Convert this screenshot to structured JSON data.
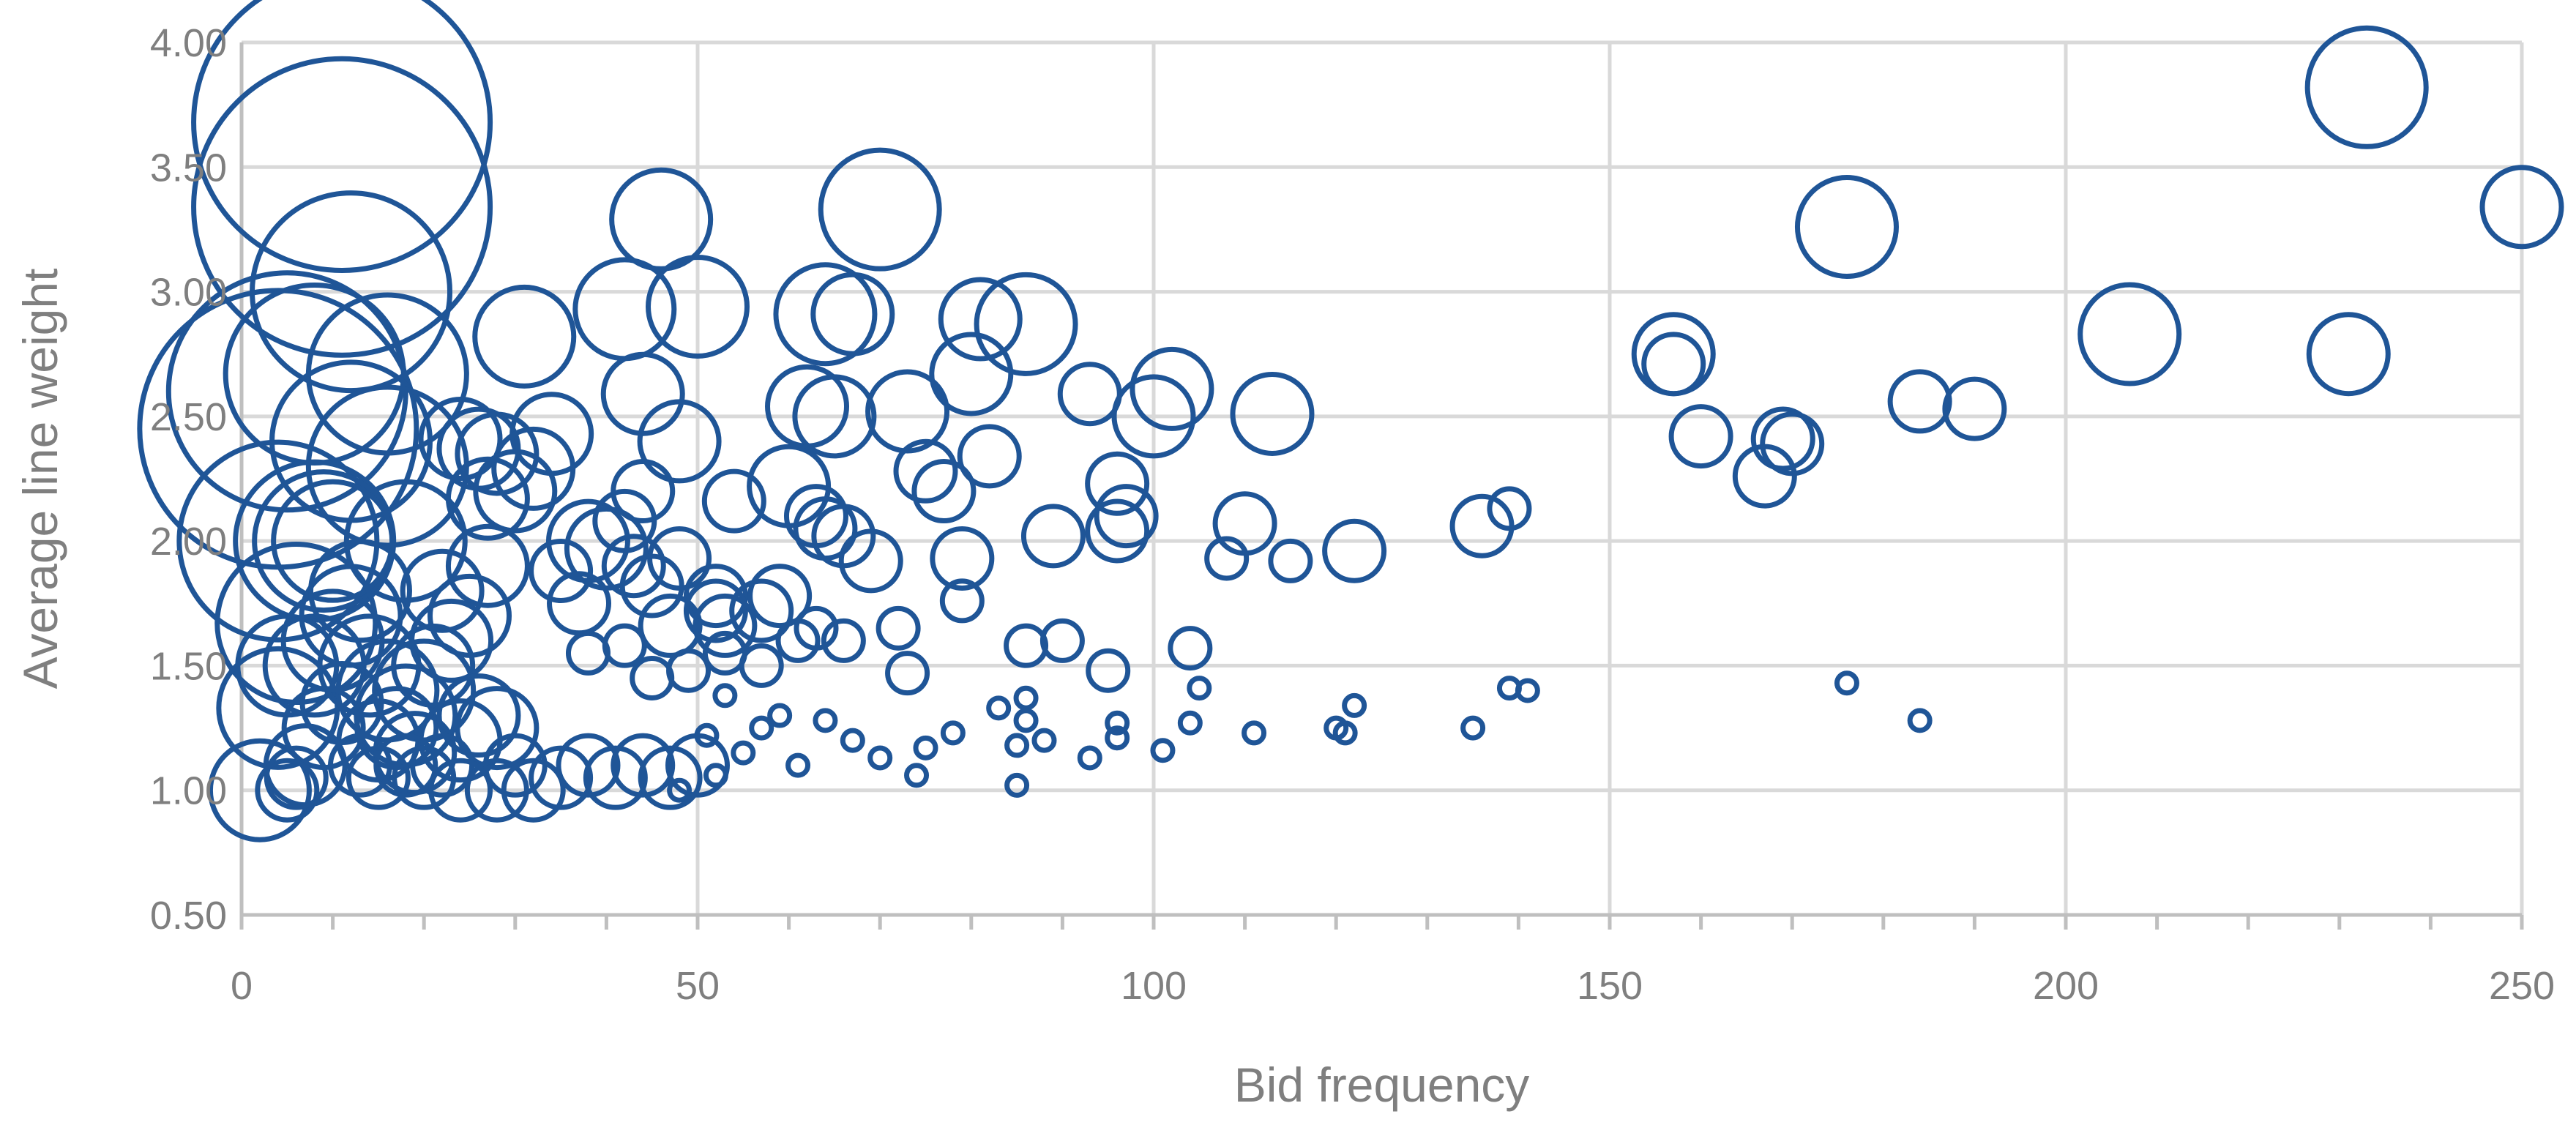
{
  "chart_data": {
    "type": "scatter",
    "xlabel": "Bid frequency",
    "ylabel": "Average line weight",
    "xlim": [
      0,
      250
    ],
    "ylim": [
      0.5,
      4.0
    ],
    "x_ticks": [
      0,
      50,
      100,
      150,
      200,
      250
    ],
    "x_tick_labels": [
      "0",
      "50",
      "100",
      "150",
      "200",
      "250"
    ],
    "x_minor_step": 10,
    "y_ticks": [
      0.5,
      1.0,
      1.5,
      2.0,
      2.5,
      3.0,
      3.5,
      4.0
    ],
    "y_tick_labels": [
      "0.50",
      "1.00",
      "1.50",
      "2.00",
      "2.50",
      "3.00",
      "3.50",
      "4.00"
    ],
    "grid": true,
    "legend": "none",
    "marker": "bubble",
    "colors": {
      "bubble": "#1f5597",
      "grid": "#d9d9d9",
      "axis": "#bfbfbf",
      "text": "#7f7f7f"
    },
    "series": [
      {
        "points": [
          [
            11,
            3.68,
            15
          ],
          [
            11,
            3.34,
            15
          ],
          [
            12,
            3.0,
            10
          ],
          [
            16,
            2.67,
            8
          ],
          [
            8,
            2.67,
            9
          ],
          [
            5,
            2.6,
            12
          ],
          [
            4,
            2.45,
            14
          ],
          [
            12,
            2.4,
            8
          ],
          [
            16,
            2.3,
            8
          ],
          [
            18,
            2.0,
            6
          ],
          [
            4,
            2.0,
            10
          ],
          [
            8,
            2.0,
            8
          ],
          [
            9,
            2.0,
            7
          ],
          [
            10,
            2.0,
            6
          ],
          [
            6,
            1.67,
            8
          ],
          [
            4,
            1.33,
            6
          ],
          [
            2,
            1.0,
            5
          ],
          [
            5,
            1.5,
            5
          ],
          [
            8,
            1.5,
            5
          ],
          [
            10,
            1.6,
            5
          ],
          [
            12,
            1.7,
            5
          ],
          [
            14,
            1.5,
            5
          ],
          [
            16,
            1.4,
            5
          ],
          [
            18,
            1.3,
            5
          ],
          [
            20,
            1.4,
            5
          ],
          [
            22,
            1.8,
            4
          ],
          [
            13,
            1.8,
            5
          ],
          [
            9,
            1.25,
            4
          ],
          [
            11,
            1.35,
            4
          ],
          [
            15,
            1.2,
            4
          ],
          [
            17,
            1.25,
            4
          ],
          [
            19,
            1.15,
            4
          ],
          [
            21,
            1.5,
            4
          ],
          [
            23,
            1.6,
            4
          ],
          [
            24,
            1.2,
            4
          ],
          [
            26,
            1.3,
            4
          ],
          [
            28,
            1.25,
            4
          ],
          [
            30,
            1.1,
            3
          ],
          [
            25,
            1.7,
            4
          ],
          [
            27,
            1.9,
            4
          ],
          [
            22,
            1.1,
            3
          ],
          [
            7,
            1.1,
            4
          ],
          [
            5,
            1.0,
            3
          ],
          [
            6,
            1.05,
            3
          ],
          [
            18,
            1.1,
            3
          ],
          [
            13,
            1.1,
            3
          ],
          [
            15,
            1.05,
            3
          ],
          [
            20,
            1.05,
            3
          ],
          [
            24,
            1.0,
            3
          ],
          [
            28,
            1.0,
            3
          ],
          [
            32,
            1.0,
            3
          ],
          [
            35,
            1.05,
            3
          ],
          [
            38,
            1.1,
            3
          ],
          [
            41,
            1.05,
            3
          ],
          [
            44,
            1.1,
            3
          ],
          [
            47,
            1.05,
            3
          ],
          [
            50,
            1.1,
            3
          ],
          [
            46,
            3.29,
            5
          ],
          [
            50,
            2.94,
            5
          ],
          [
            42,
            2.93,
            5
          ],
          [
            31,
            2.82,
            5
          ],
          [
            70,
            3.33,
            6
          ],
          [
            64,
            2.91,
            5
          ],
          [
            67,
            2.91,
            4
          ],
          [
            81,
            2.89,
            4
          ],
          [
            86,
            2.87,
            5
          ],
          [
            44,
            2.59,
            4
          ],
          [
            34,
            2.43,
            4
          ],
          [
            48,
            2.4,
            4
          ],
          [
            24,
            2.41,
            4
          ],
          [
            26,
            2.37,
            4
          ],
          [
            28,
            2.35,
            4
          ],
          [
            32,
            2.29,
            4
          ],
          [
            30,
            2.2,
            4
          ],
          [
            27,
            2.17,
            4
          ],
          [
            44,
            2.2,
            3
          ],
          [
            60,
            2.22,
            4
          ],
          [
            38,
            2.0,
            4
          ],
          [
            42,
            2.08,
            3
          ],
          [
            40,
            1.97,
            4
          ],
          [
            43,
            1.9,
            3
          ],
          [
            48,
            1.93,
            3
          ],
          [
            35,
            1.88,
            3
          ],
          [
            37,
            1.75,
            3
          ],
          [
            45,
            1.82,
            3
          ],
          [
            52,
            1.78,
            3
          ],
          [
            47,
            1.66,
            3
          ],
          [
            52,
            1.72,
            3
          ],
          [
            53,
            1.66,
            3
          ],
          [
            57,
            1.72,
            3
          ],
          [
            59,
            1.78,
            3
          ],
          [
            62,
            2.54,
            4
          ],
          [
            65,
            2.5,
            4
          ],
          [
            73,
            2.52,
            4
          ],
          [
            80,
            2.67,
            4
          ],
          [
            82,
            2.34,
            3
          ],
          [
            75,
            2.28,
            3
          ],
          [
            77,
            2.2,
            3
          ],
          [
            54,
            2.16,
            3
          ],
          [
            63,
            2.1,
            3
          ],
          [
            64,
            2.05,
            3
          ],
          [
            66,
            2.02,
            3
          ],
          [
            69,
            1.92,
            3
          ],
          [
            79,
            1.93,
            3
          ],
          [
            89,
            2.02,
            3
          ],
          [
            93,
            2.59,
            3
          ],
          [
            96,
            2.23,
            3
          ],
          [
            97,
            2.1,
            3
          ],
          [
            96,
            2.04,
            3
          ],
          [
            100,
            2.5,
            4
          ],
          [
            102,
            2.61,
            4
          ],
          [
            113,
            2.51,
            4
          ],
          [
            110,
            2.07,
            3
          ],
          [
            108,
            1.93,
            2
          ],
          [
            115,
            1.92,
            2
          ],
          [
            122,
            1.96,
            3
          ],
          [
            136,
            2.06,
            3
          ],
          [
            139,
            2.13,
            2
          ],
          [
            79,
            1.76,
            2
          ],
          [
            72,
            1.65,
            2
          ],
          [
            66,
            1.6,
            2
          ],
          [
            61,
            1.6,
            2
          ],
          [
            63,
            1.65,
            2
          ],
          [
            57,
            1.5,
            2
          ],
          [
            53,
            1.55,
            2
          ],
          [
            49,
            1.48,
            2
          ],
          [
            45,
            1.45,
            2
          ],
          [
            42,
            1.58,
            2
          ],
          [
            38,
            1.55,
            2
          ],
          [
            73,
            1.47,
            2
          ],
          [
            86,
            1.58,
            2
          ],
          [
            90,
            1.6,
            2
          ],
          [
            95,
            1.48,
            2
          ],
          [
            104,
            1.57,
            2
          ],
          [
            105,
            1.41,
            1
          ],
          [
            96,
            1.27,
            1
          ],
          [
            96,
            1.21,
            1
          ],
          [
            86,
            1.37,
            1
          ],
          [
            86,
            1.28,
            1
          ],
          [
            83,
            1.33,
            1
          ],
          [
            85,
            1.18,
            1
          ],
          [
            88,
            1.2,
            1
          ],
          [
            78,
            1.23,
            1
          ],
          [
            75,
            1.17,
            1
          ],
          [
            70,
            1.13,
            1
          ],
          [
            67,
            1.2,
            1
          ],
          [
            64,
            1.28,
            1
          ],
          [
            61,
            1.1,
            1
          ],
          [
            59,
            1.3,
            1
          ],
          [
            57,
            1.25,
            1
          ],
          [
            55,
            1.15,
            1
          ],
          [
            53,
            1.38,
            1
          ],
          [
            52,
            1.06,
            1
          ],
          [
            51,
            1.22,
            1
          ],
          [
            48,
            1.0,
            1
          ],
          [
            74,
            1.06,
            1
          ],
          [
            85,
            1.02,
            1
          ],
          [
            93,
            1.13,
            1
          ],
          [
            101,
            1.16,
            1
          ],
          [
            104,
            1.27,
            1
          ],
          [
            111,
            1.23,
            1
          ],
          [
            120,
            1.25,
            1
          ],
          [
            121,
            1.23,
            1
          ],
          [
            122,
            1.34,
            1
          ],
          [
            135,
            1.25,
            1
          ],
          [
            139,
            1.41,
            1
          ],
          [
            141,
            1.4,
            1
          ],
          [
            176,
            1.43,
            1
          ],
          [
            184,
            1.28,
            1
          ],
          [
            157,
            2.75,
            4
          ],
          [
            157,
            2.71,
            3
          ],
          [
            160,
            2.42,
            3
          ],
          [
            167,
            2.26,
            3
          ],
          [
            169,
            2.41,
            3
          ],
          [
            170,
            2.39,
            3
          ],
          [
            176,
            3.26,
            5
          ],
          [
            184,
            2.56,
            3
          ],
          [
            190,
            2.53,
            3
          ],
          [
            207,
            2.83,
            5
          ],
          [
            231,
            2.75,
            4
          ],
          [
            233,
            3.82,
            6
          ],
          [
            250,
            3.34,
            4
          ]
        ]
      }
    ]
  }
}
